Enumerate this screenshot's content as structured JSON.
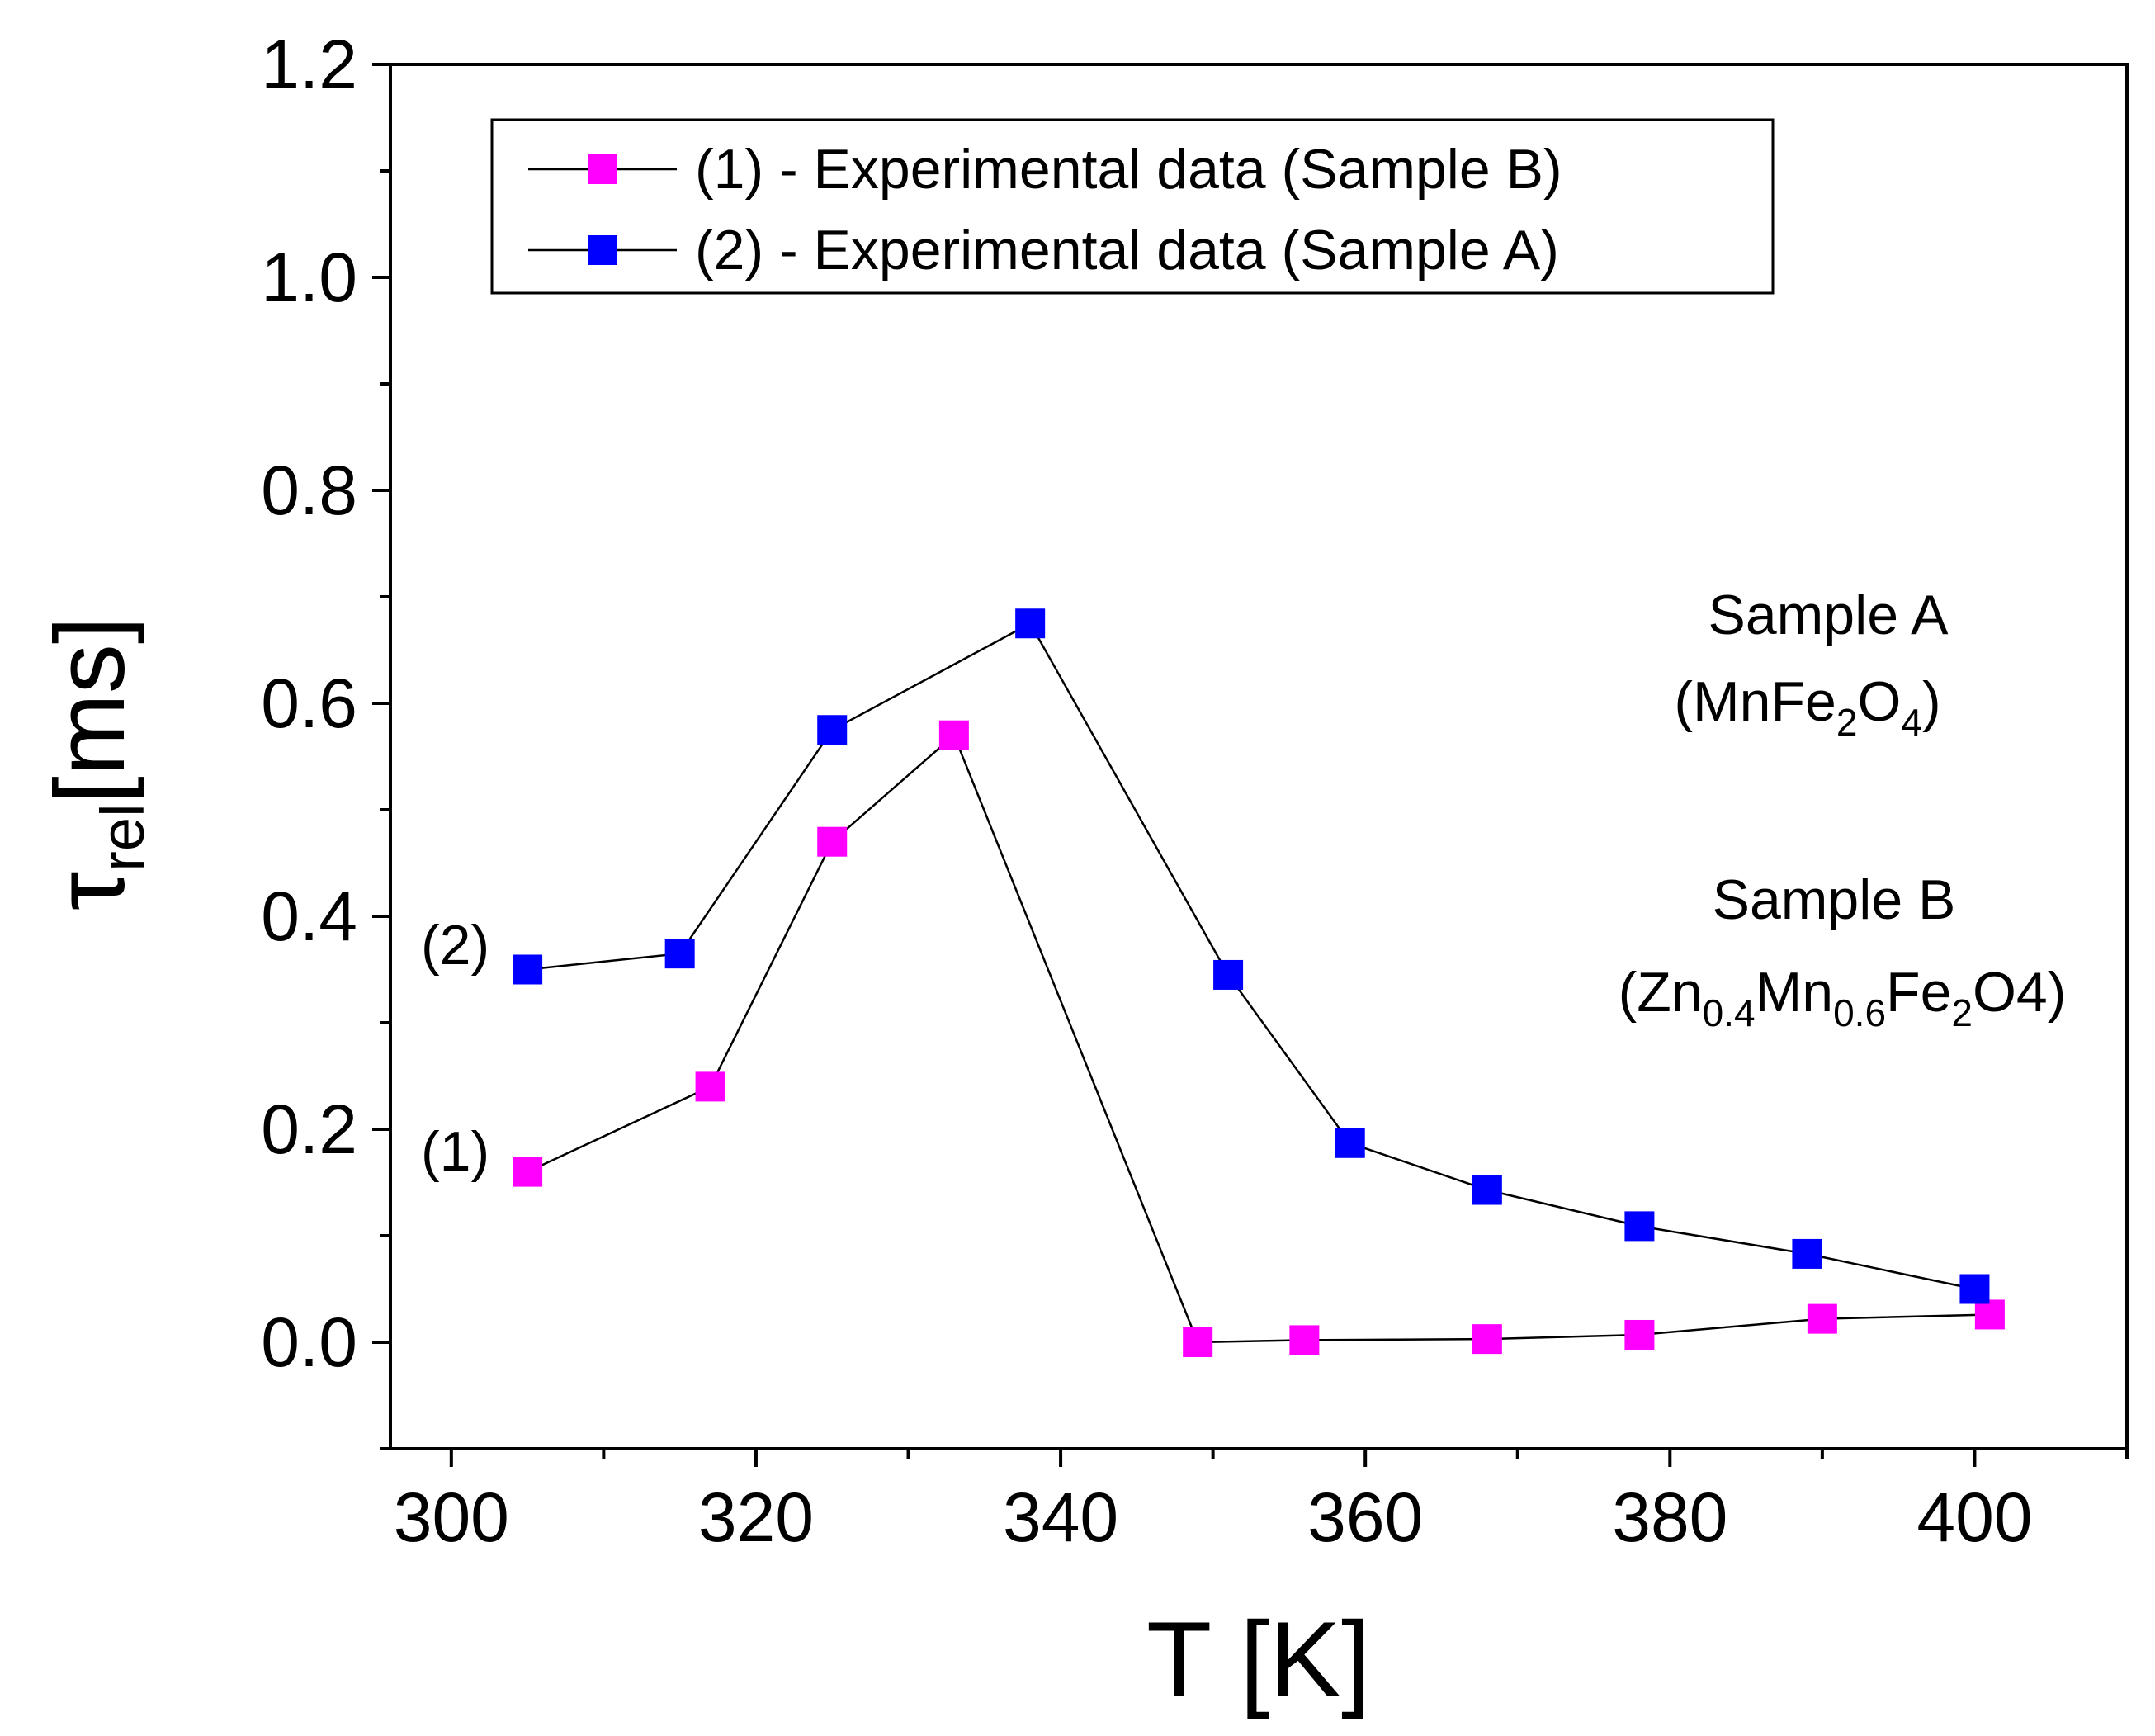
{
  "chart_data": {
    "type": "line",
    "xlabel": "T [K]",
    "ylabel": {
      "symbol": "τ",
      "subscript": "rel",
      "unit": "[ms]"
    },
    "xlim": [
      296,
      410
    ],
    "ylim": [
      -0.1,
      1.2
    ],
    "xticks": [
      300,
      320,
      340,
      360,
      380,
      400
    ],
    "yticks": [
      0.0,
      0.2,
      0.4,
      0.6,
      0.8,
      1.0,
      1.2
    ],
    "xtick_labels": [
      "300",
      "320",
      "340",
      "360",
      "380",
      "400"
    ],
    "ytick_labels": [
      "0.0",
      "0.2",
      "0.4",
      "0.6",
      "0.8",
      "1.0",
      "1.2"
    ],
    "grid": false,
    "legend_position": "top-left",
    "series": [
      {
        "name": "(1) - Experimental data (Sample B)",
        "label": "(1)",
        "color": "#ff00ff",
        "x": [
          305,
          317,
          325,
          333,
          349,
          356,
          368,
          378,
          390,
          401
        ],
        "y": [
          0.16,
          0.24,
          0.47,
          0.57,
          0.0,
          0.002,
          0.003,
          0.007,
          0.022,
          0.026
        ]
      },
      {
        "name": "(2) - Experimental data (Sample A)",
        "label": "(2)",
        "color": "#0000ff",
        "x": [
          305,
          315,
          325,
          338,
          351,
          359,
          368,
          378,
          389,
          400
        ],
        "y": [
          0.35,
          0.365,
          0.575,
          0.675,
          0.345,
          0.187,
          0.143,
          0.109,
          0.083,
          0.05
        ]
      }
    ],
    "annotations": {
      "sample_a_title": "Sample A",
      "sample_a_formula": {
        "p1": "(MnFe",
        "s1": "2",
        "p2": "O",
        "s2": "4",
        "p3": ")"
      },
      "sample_b_title": "Sample B",
      "sample_b_formula": {
        "p1": "(Zn",
        "s1": "0.4",
        "p2": "Mn",
        "s2": "0.6",
        "p3": "Fe",
        "s3": "2",
        "p4": "O4)"
      }
    }
  }
}
